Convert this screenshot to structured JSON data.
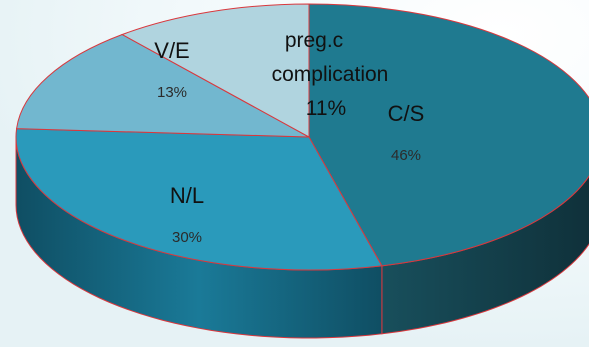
{
  "chart_data": {
    "type": "pie",
    "style": "3d",
    "title": "",
    "slices": [
      {
        "label": "C/S",
        "value_label": "46%",
        "value": 46,
        "color": "#1f7a90"
      },
      {
        "label": "N/L",
        "value_label": "30%",
        "value": 30,
        "color": "#2a9abb"
      },
      {
        "label": "V/E",
        "value_label": "13%",
        "value": 13,
        "color": "#72b7cf"
      },
      {
        "label_lines": [
          "preg.c",
          "complication"
        ],
        "value_label": "11%",
        "value": 11,
        "color": "#b0d4df"
      }
    ],
    "edge_color": "#d9383d",
    "legend": "none"
  }
}
